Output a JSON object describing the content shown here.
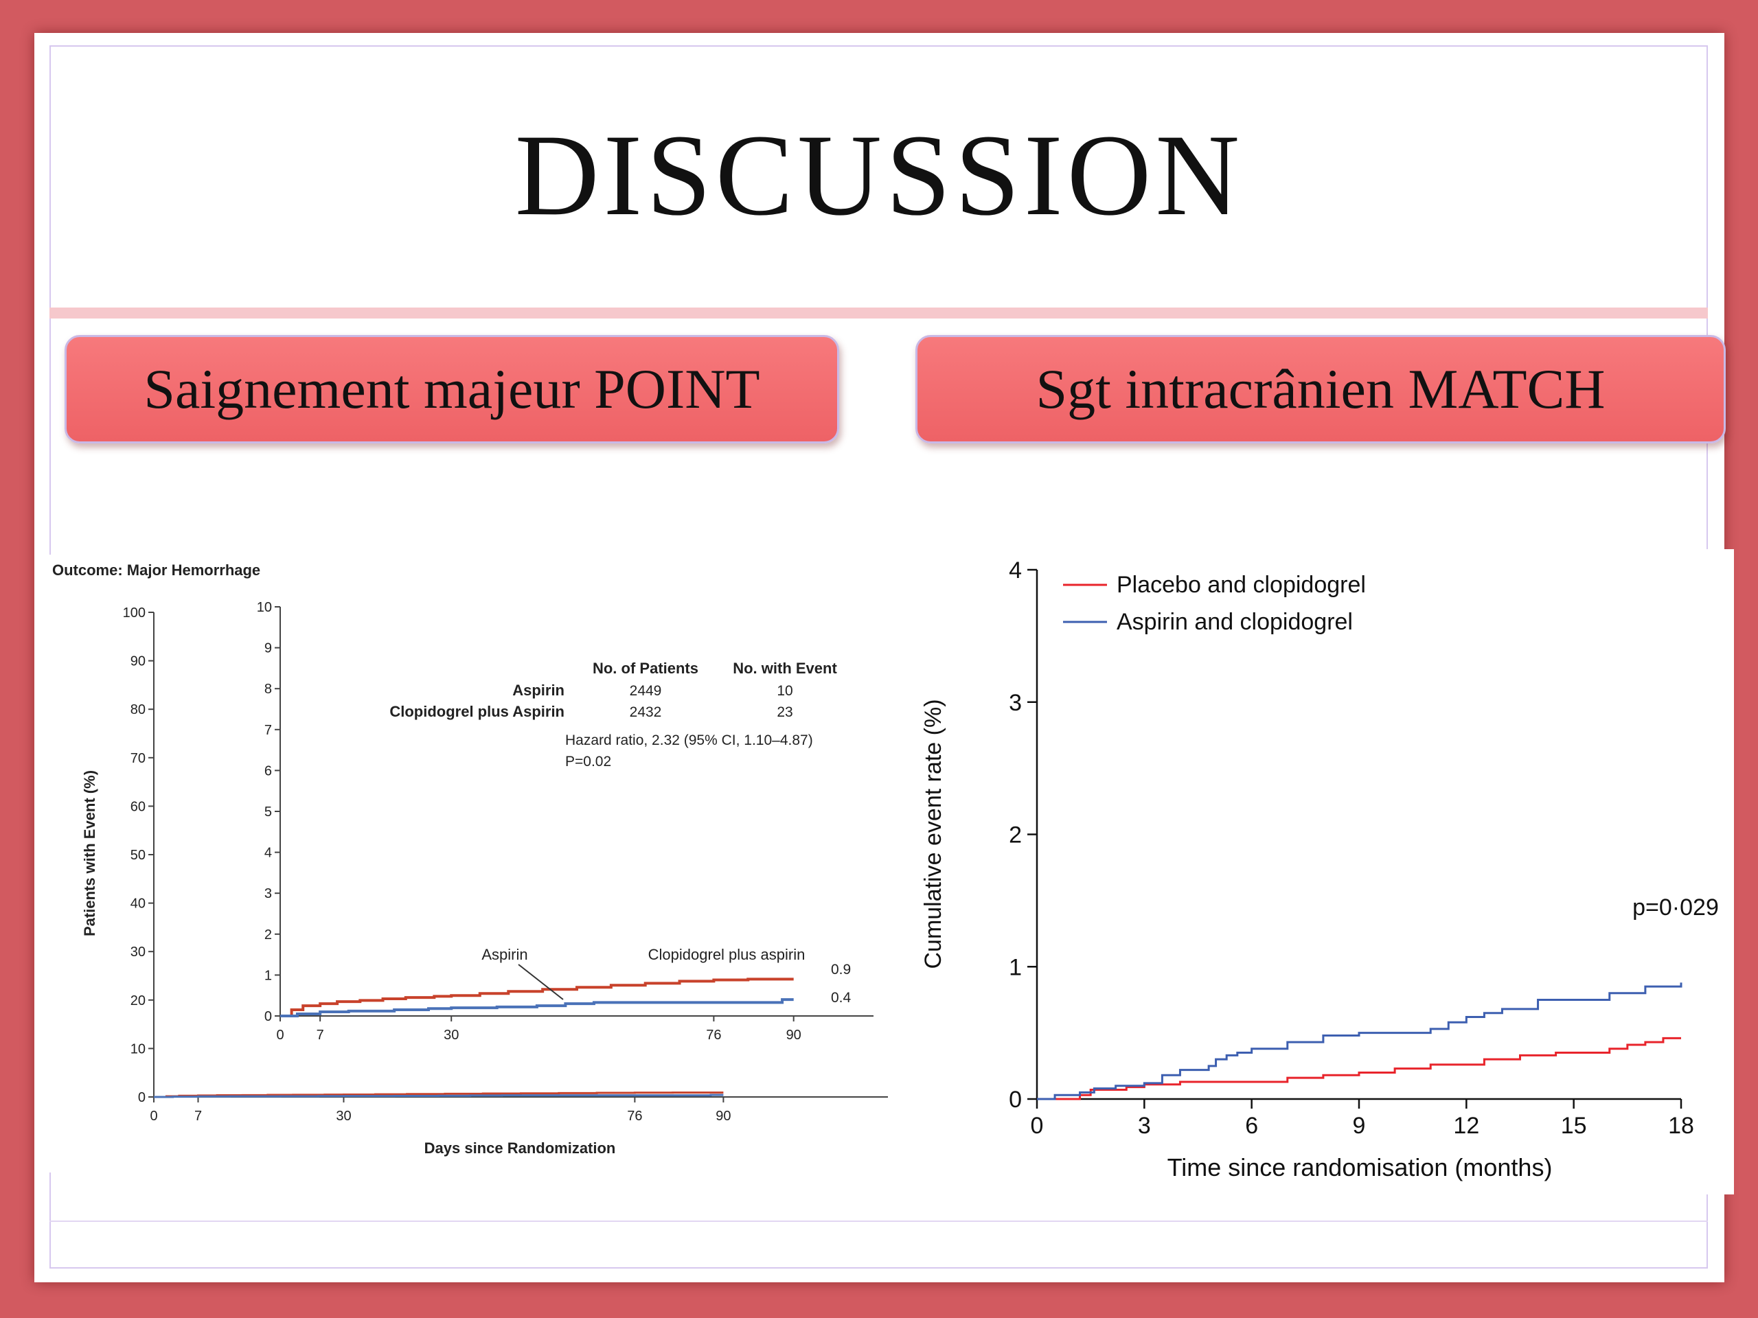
{
  "slide": {
    "title": "DISCUSSION",
    "left_heading": "Saignement majeur POINT",
    "right_heading": "Sgt intracrânien MATCH"
  },
  "colors": {
    "background": "#d25a60",
    "pill": "#ee6266",
    "rule": "#f6c8cc",
    "red_series": "#c8422b",
    "blue_series": "#4a72b8",
    "match_red": "#e8242b",
    "match_blue": "#3d5fb0"
  },
  "chart_data": [
    {
      "type": "line",
      "title": "Outcome: Major Hemorrhage",
      "xlabel": "Days since Randomization",
      "ylabel": "Patients with Event (%)",
      "xlim": [
        0,
        90
      ],
      "ylim": [
        0,
        100
      ],
      "x_ticks": [
        0,
        7,
        30,
        76,
        90
      ],
      "y_ticks": [
        0,
        10,
        20,
        30,
        40,
        50,
        60,
        70,
        80,
        90,
        100
      ],
      "inset": {
        "xlim": [
          0,
          90
        ],
        "ylim": [
          0,
          10
        ],
        "x_ticks": [
          0,
          7,
          30,
          76,
          90
        ],
        "y_ticks": [
          0,
          1,
          2,
          3,
          4,
          5,
          6,
          7,
          8,
          9,
          10
        ],
        "end_labels": [
          "0.9",
          "0.4"
        ]
      },
      "table": {
        "headers": [
          "No. of Patients",
          "No. with Event"
        ],
        "rows": [
          {
            "label": "Aspirin",
            "patients": "2449",
            "events": "10"
          },
          {
            "label": "Clopidogrel plus Aspirin",
            "patients": "2432",
            "events": "23"
          }
        ]
      },
      "hazard_text": "Hazard ratio, 2.32 (95% CI, 1.10–4.87)",
      "p_text": "P=0.02",
      "series": [
        {
          "name": "Clopidogrel plus aspirin",
          "color": "#c8422b",
          "x": [
            0,
            2,
            4,
            7,
            10,
            14,
            18,
            22,
            27,
            30,
            35,
            40,
            46,
            52,
            58,
            64,
            70,
            76,
            82,
            86,
            90
          ],
          "y": [
            0,
            0.15,
            0.25,
            0.3,
            0.35,
            0.38,
            0.42,
            0.45,
            0.48,
            0.5,
            0.55,
            0.6,
            0.65,
            0.7,
            0.75,
            0.8,
            0.85,
            0.88,
            0.9,
            0.9,
            0.9
          ]
        },
        {
          "name": "Aspirin",
          "color": "#4a72b8",
          "x": [
            0,
            3,
            7,
            12,
            20,
            26,
            30,
            38,
            45,
            50,
            55,
            60,
            70,
            76,
            82,
            86,
            88,
            90
          ],
          "y": [
            0,
            0.05,
            0.1,
            0.12,
            0.15,
            0.18,
            0.2,
            0.22,
            0.25,
            0.3,
            0.33,
            0.33,
            0.33,
            0.33,
            0.33,
            0.33,
            0.4,
            0.4
          ]
        }
      ]
    },
    {
      "type": "line",
      "xlabel": "Time since randomisation (months)",
      "ylabel": "Cumulative event rate (%)",
      "xlim": [
        0,
        18
      ],
      "ylim": [
        0,
        4
      ],
      "x_ticks": [
        0,
        3,
        6,
        9,
        12,
        15,
        18
      ],
      "y_ticks": [
        0,
        1,
        2,
        3,
        4
      ],
      "annotation": "p=0·029",
      "legend_position": "top-left",
      "series": [
        {
          "name": "Placebo and clopidogrel",
          "color": "#e8242b",
          "x": [
            0,
            1.2,
            1.5,
            2.5,
            3.0,
            4.0,
            5.5,
            7.0,
            8.0,
            9.0,
            10.0,
            11.0,
            12.5,
            13.5,
            14.5,
            16.0,
            16.5,
            17.0,
            17.5,
            18.0
          ],
          "y": [
            0,
            0.03,
            0.07,
            0.09,
            0.11,
            0.13,
            0.13,
            0.16,
            0.18,
            0.2,
            0.23,
            0.26,
            0.3,
            0.33,
            0.35,
            0.38,
            0.41,
            0.43,
            0.46,
            0.46
          ]
        },
        {
          "name": "Aspirin and clopidogrel",
          "color": "#3d5fb0",
          "x": [
            0,
            0.5,
            1.2,
            1.6,
            2.2,
            3.0,
            3.5,
            4.0,
            4.8,
            5.0,
            5.3,
            5.6,
            6.0,
            7.0,
            8.0,
            9.0,
            10.0,
            11.0,
            11.5,
            12.0,
            12.5,
            13.0,
            14.0,
            15.0,
            16.0,
            17.0,
            18.0
          ],
          "y": [
            0,
            0.03,
            0.05,
            0.08,
            0.1,
            0.12,
            0.18,
            0.22,
            0.25,
            0.3,
            0.33,
            0.35,
            0.38,
            0.43,
            0.48,
            0.5,
            0.5,
            0.53,
            0.58,
            0.62,
            0.65,
            0.68,
            0.75,
            0.75,
            0.8,
            0.85,
            0.88
          ]
        }
      ]
    }
  ]
}
